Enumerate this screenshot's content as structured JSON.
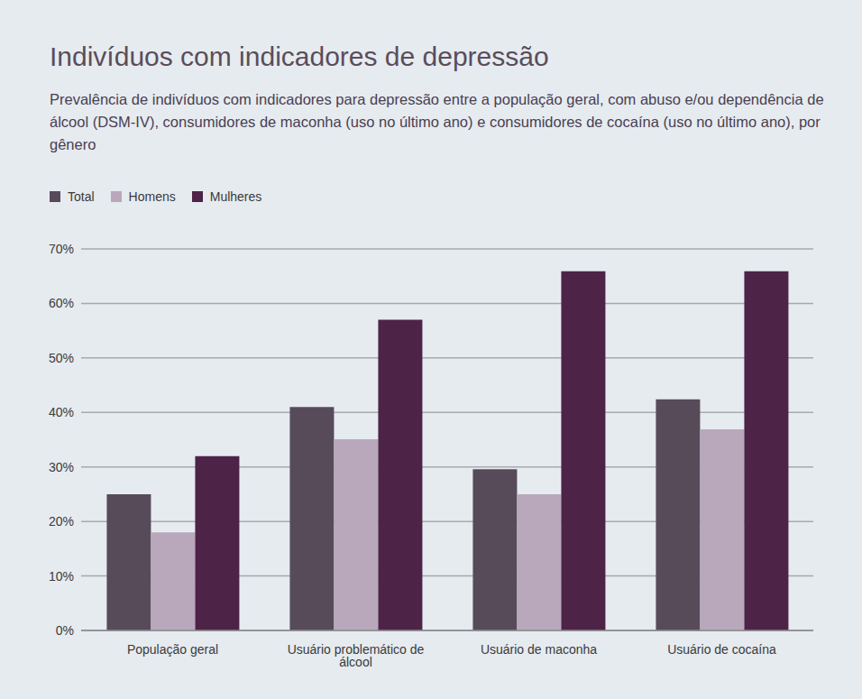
{
  "chart_data": {
    "type": "bar",
    "title": "Indivíduos com indicadores de depressão",
    "subtitle": "Prevalência de indivíduos com indicadores para depressão entre a população geral, com abuso e/ou dependência de álcool (DSM-IV), consumidores de maconha (uso no último ano) e consumidores de cocaína (uso no último ano), por gênero",
    "categories": [
      "População geral",
      "Usuário problemático de álcool",
      "Usuário de maconha",
      "Usuário de cocaína"
    ],
    "series": [
      {
        "name": "Total",
        "color": "#574b5a",
        "values": [
          25,
          41,
          29.6,
          42.4
        ]
      },
      {
        "name": "Homens",
        "color": "#b9a8bb",
        "values": [
          18,
          35.1,
          25,
          36.9
        ]
      },
      {
        "name": "Mulheres",
        "color": "#4e2348",
        "values": [
          32,
          57,
          65.9,
          65.9
        ]
      }
    ],
    "ylim": [
      0,
      70
    ],
    "yticks": [
      {
        "value": 0,
        "label": "0%"
      },
      {
        "value": 10,
        "label": "10%"
      },
      {
        "value": 20,
        "label": "20%"
      },
      {
        "value": 30,
        "label": "30%"
      },
      {
        "value": 40,
        "label": "40%"
      },
      {
        "value": 50,
        "label": "50%"
      },
      {
        "value": 60,
        "label": "60%"
      },
      {
        "value": 70,
        "label": "70%"
      }
    ],
    "grid": true,
    "legend": "top-left"
  }
}
